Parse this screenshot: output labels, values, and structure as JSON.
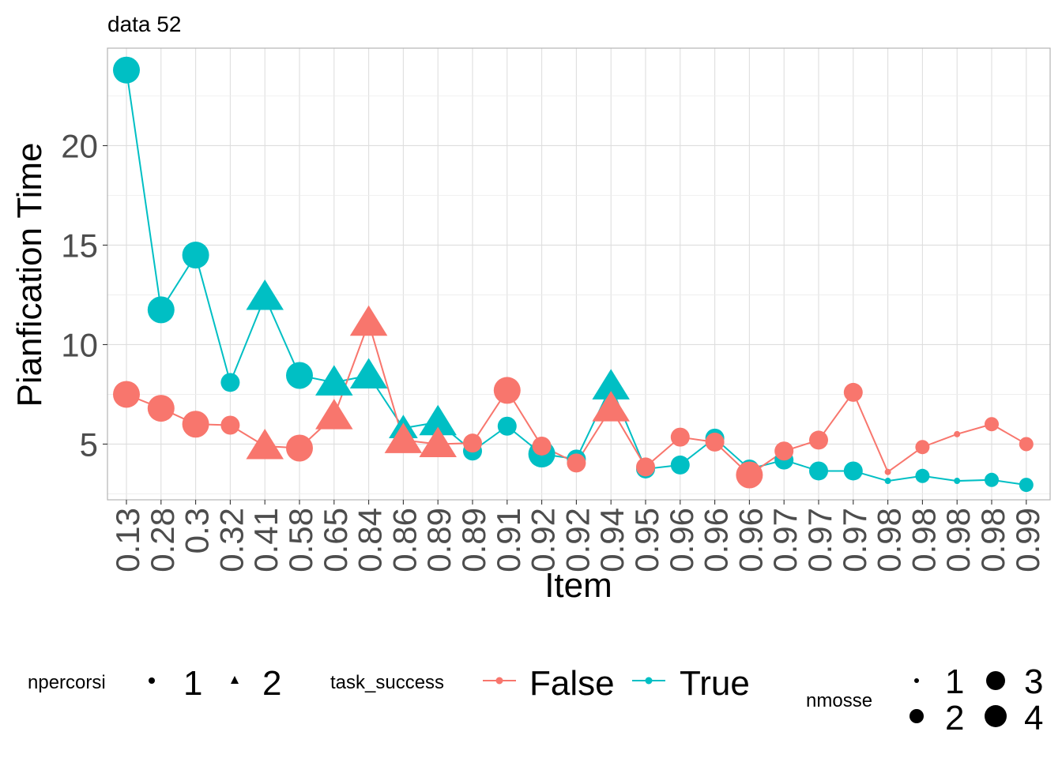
{
  "chart_data": {
    "type": "line",
    "title": "data 52",
    "xlabel": "Item",
    "ylabel": "Pianfication Time",
    "x_tick_labels": [
      "0.13",
      "0.28",
      "0.3",
      "0.32",
      "0.41",
      "0.58",
      "0.65",
      "0.84",
      "0.86",
      "0.89",
      "0.89",
      "0.91",
      "0.92",
      "0.92",
      "0.94",
      "0.95",
      "0.96",
      "0.96",
      "0.96",
      "0.97",
      "0.97",
      "0.97",
      "0.98",
      "0.98",
      "0.98",
      "0.98",
      "0.99"
    ],
    "y_ticks": [
      5,
      10,
      15,
      20
    ],
    "ylim": [
      2.2,
      24.9
    ],
    "grid": true,
    "series": [
      {
        "name": "False",
        "color": "#F8766D",
        "values": [
          7.5,
          6.8,
          6.0,
          5.95,
          4.9,
          4.8,
          6.4,
          11.1,
          5.2,
          5.0,
          5.05,
          7.7,
          4.9,
          4.05,
          6.8,
          3.85,
          5.35,
          5.1,
          3.45,
          4.65,
          5.2,
          7.6,
          3.6,
          4.85,
          5.5,
          6.0,
          5.0
        ],
        "shape_npercorsi": [
          1,
          1,
          1,
          1,
          2,
          1,
          2,
          2,
          2,
          2,
          1,
          1,
          1,
          1,
          2,
          1,
          1,
          1,
          1,
          1,
          1,
          1,
          1,
          1,
          1,
          1,
          1
        ],
        "size_nmosse": [
          4,
          4,
          4,
          3,
          4,
          4,
          4,
          4,
          4,
          4,
          3,
          4,
          3,
          3,
          4,
          3,
          3,
          3,
          4,
          3,
          3,
          3,
          1,
          2,
          1,
          2,
          2
        ]
      },
      {
        "name": "True",
        "color": "#00BFC4",
        "values": [
          23.8,
          11.75,
          14.5,
          8.1,
          12.4,
          8.45,
          8.1,
          8.45,
          5.8,
          6.1,
          4.65,
          5.9,
          4.5,
          4.25,
          7.9,
          3.75,
          3.95,
          5.3,
          3.75,
          4.2,
          3.65,
          3.65,
          3.15,
          3.4,
          3.15,
          3.2,
          2.95
        ]
      }
    ],
    "true_shape_npercorsi": [
      1,
      1,
      1,
      1,
      2,
      1,
      2,
      2,
      2,
      2,
      1,
      1,
      1,
      1,
      2,
      1,
      1,
      1,
      1,
      1,
      1,
      1,
      1,
      1,
      1,
      1,
      1
    ],
    "true_size_nmosse": [
      4,
      4,
      4,
      3,
      4,
      4,
      4,
      4,
      3,
      4,
      3,
      3,
      4,
      3,
      4,
      3,
      3,
      3,
      3,
      3,
      3,
      3,
      1,
      2,
      1,
      2,
      2
    ],
    "legend": {
      "placement": "bottom",
      "npercorsi": {
        "title": "npercorsi",
        "labels": [
          "1",
          "2"
        ]
      },
      "task_success": {
        "title": "task_success",
        "labels": [
          "False",
          "True"
        ]
      },
      "nmosse": {
        "title": "nmosse",
        "labels": [
          "1",
          "2",
          "3",
          "4"
        ]
      }
    }
  }
}
